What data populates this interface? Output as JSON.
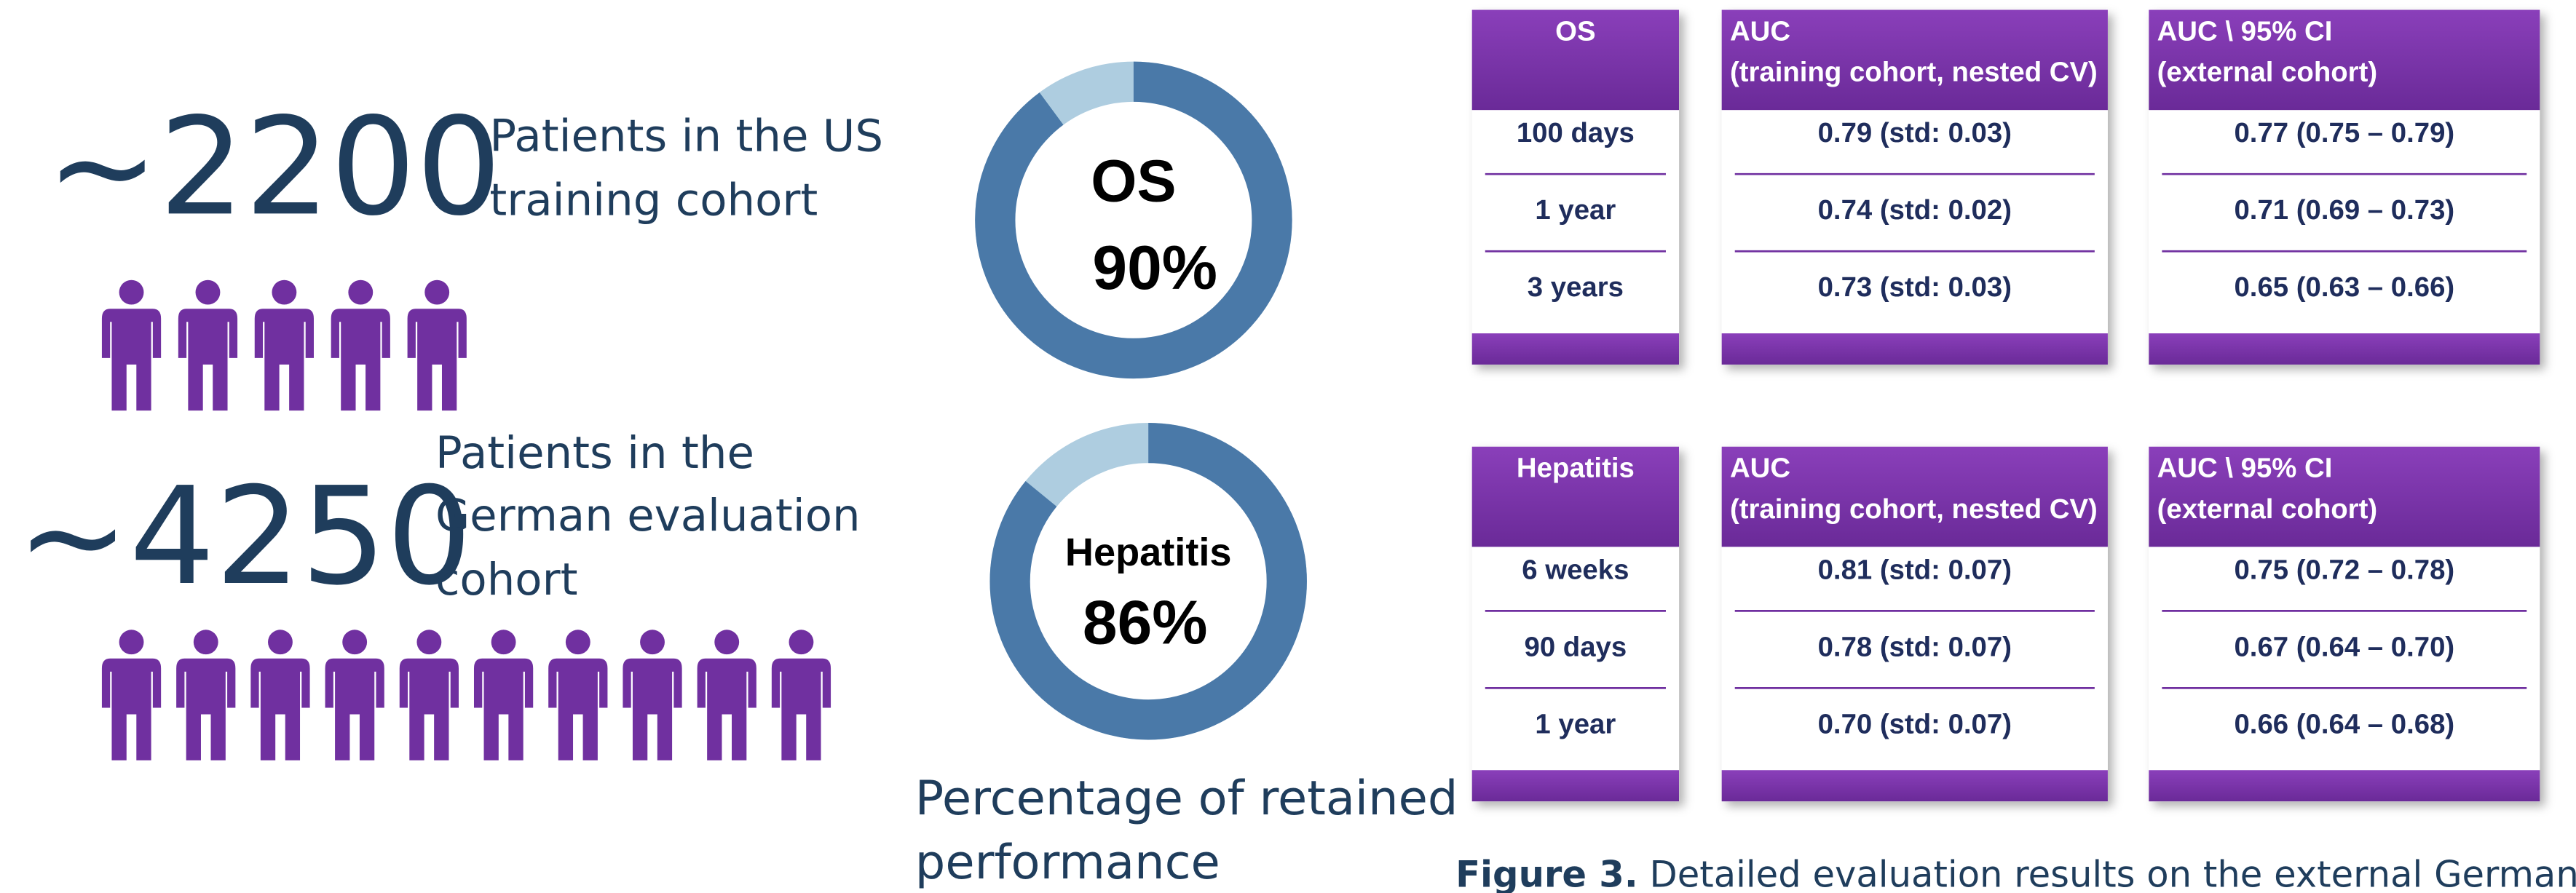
{
  "cohorts": [
    {
      "number": "~2200",
      "label_lines": [
        "Patients in the US",
        "training cohort"
      ]
    },
    {
      "number": "~4250",
      "label_lines": [
        "Patients in the",
        "German evaluation",
        "cohort"
      ]
    }
  ],
  "donuts": [
    {
      "label": "OS",
      "value": 90,
      "value_label": "90%"
    },
    {
      "label": "Hepatitis",
      "value": 86,
      "value_label": "86%"
    }
  ],
  "donut_caption_lines": [
    "Percentage of retained",
    "performance"
  ],
  "tables": [
    {
      "headers": [
        [
          "OS"
        ],
        [
          "AUC",
          "(training cohort, nested CV)"
        ],
        [
          "AUC \\ 95% CI",
          "(external cohort)"
        ]
      ],
      "rows": [
        [
          "100 days",
          "0.79 (std: 0.03)",
          "0.77 (0.75 – 0.79)"
        ],
        [
          "1 year",
          "0.74 (std: 0.02)",
          "0.71 (0.69 – 0.73)"
        ],
        [
          "3 years",
          "0.73 (std: 0.03)",
          "0.65 (0.63 – 0.66)"
        ]
      ]
    },
    {
      "headers": [
        [
          "Hepatitis"
        ],
        [
          "AUC",
          "(training cohort, nested CV)"
        ],
        [
          "AUC \\ 95% CI",
          "(external cohort)"
        ]
      ],
      "rows": [
        [
          "6 weeks",
          "0.81 (std: 0.07)",
          "0.75 (0.72 – 0.78)"
        ],
        [
          "90 days",
          "0.78 (std: 0.07)",
          "0.67 (0.64 – 0.70)"
        ],
        [
          "1 year",
          "0.70 (std: 0.07)",
          "0.66 (0.64 – 0.68)"
        ]
      ]
    }
  ],
  "caption": {
    "label": "Figure 3.",
    "text": "Detailed evaluation results on the external German cohort"
  }
}
